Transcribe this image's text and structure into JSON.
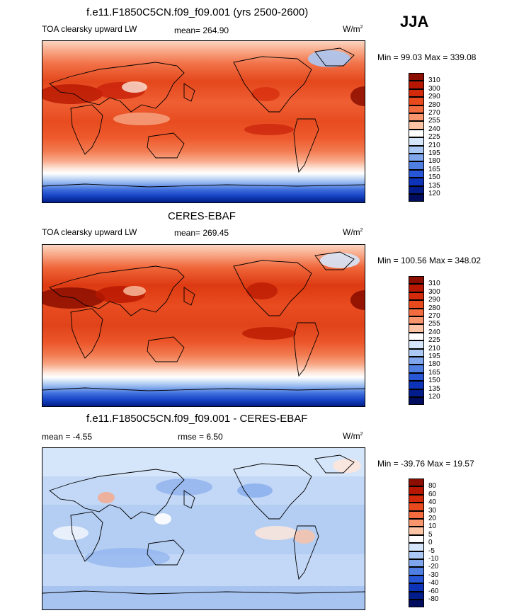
{
  "season": "JJA",
  "panels": [
    {
      "title": "f.e11.F1850C5CN.f09_f09.001 (yrs 2500-2600)",
      "left_label": "TOA clearsky upward LW",
      "center_label": "mean= 264.90",
      "units": "W/m",
      "units_exp": "2",
      "minmax": "Min =  99.03 Max = 339.08",
      "legend_levels": [
        "310",
        "300",
        "290",
        "280",
        "270",
        "255",
        "240",
        "225",
        "210",
        "195",
        "180",
        "165",
        "150",
        "135",
        "120"
      ],
      "legend_colors": [
        "#8c0e00",
        "#b71700",
        "#d42a0c",
        "#e84a1e",
        "#f26c3f",
        "#f8956c",
        "#fcc3a5",
        "#ffffff",
        "#d6e6fa",
        "#abc8f4",
        "#7fa6ec",
        "#4f7fe3",
        "#2756d6",
        "#0c33b8",
        "#021c8b",
        "#000d5e"
      ]
    },
    {
      "title": "CERES-EBAF",
      "left_label": "TOA clearsky upward LW",
      "center_label": "mean= 269.45",
      "units": "W/m",
      "units_exp": "2",
      "minmax": "Min = 100.56 Max = 348.02",
      "legend_levels": [
        "310",
        "300",
        "290",
        "280",
        "270",
        "255",
        "240",
        "225",
        "210",
        "195",
        "180",
        "165",
        "150",
        "135",
        "120"
      ],
      "legend_colors": [
        "#8c0e00",
        "#b71700",
        "#d42a0c",
        "#e84a1e",
        "#f26c3f",
        "#f8956c",
        "#fcc3a5",
        "#ffffff",
        "#d6e6fa",
        "#abc8f4",
        "#7fa6ec",
        "#4f7fe3",
        "#2756d6",
        "#0c33b8",
        "#021c8b",
        "#000d5e"
      ]
    },
    {
      "title": "f.e11.F1850C5CN.f09_f09.001 - CERES-EBAF",
      "left_label": "mean =  -4.55",
      "center_label": "rmse =   6.50",
      "units": "W/m",
      "units_exp": "2",
      "minmax": "Min = -39.76 Max =  19.57",
      "legend_levels": [
        "80",
        "60",
        "40",
        "30",
        "20",
        "10",
        "5",
        "0",
        "-5",
        "-10",
        "-20",
        "-30",
        "-40",
        "-60",
        "-80"
      ],
      "legend_colors": [
        "#8c0e00",
        "#b71700",
        "#d42a0c",
        "#e84a1e",
        "#f26c3f",
        "#f8956c",
        "#fcc3a5",
        "#ffffff",
        "#d6e6fa",
        "#abc8f4",
        "#7fa6ec",
        "#4f7fe3",
        "#2756d6",
        "#0c33b8",
        "#021c8b",
        "#000d5e"
      ]
    }
  ],
  "chart_data": [
    {
      "type": "heatmap",
      "title": "f.e11.F1850C5CN.f09_f09.001 (yrs 2500-2600)",
      "field": "TOA clearsky upward LW",
      "season": "JJA",
      "units": "W/m2",
      "mean": 264.9,
      "min": 99.03,
      "max": 339.08,
      "contour_levels": [
        120,
        135,
        150,
        165,
        180,
        195,
        210,
        225,
        240,
        255,
        270,
        280,
        290,
        300,
        310
      ]
    },
    {
      "type": "heatmap",
      "title": "CERES-EBAF",
      "field": "TOA clearsky upward LW",
      "season": "JJA",
      "units": "W/m2",
      "mean": 269.45,
      "min": 100.56,
      "max": 348.02,
      "contour_levels": [
        120,
        135,
        150,
        165,
        180,
        195,
        210,
        225,
        240,
        255,
        270,
        280,
        290,
        300,
        310
      ]
    },
    {
      "type": "heatmap",
      "title": "f.e11.F1850C5CN.f09_f09.001 - CERES-EBAF",
      "season": "JJA",
      "units": "W/m2",
      "mean": -4.55,
      "rmse": 6.5,
      "min": -39.76,
      "max": 19.57,
      "contour_levels": [
        -80,
        -60,
        -40,
        -30,
        -20,
        -10,
        -5,
        0,
        5,
        10,
        20,
        30,
        40,
        60,
        80
      ]
    }
  ]
}
